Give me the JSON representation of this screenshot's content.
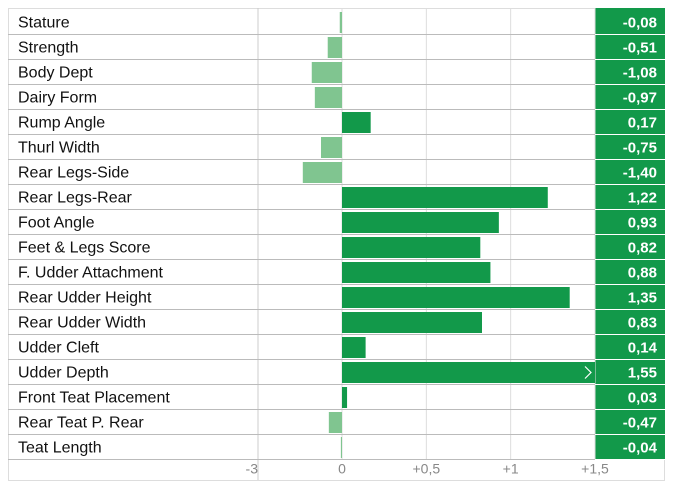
{
  "chart_data": {
    "type": "hbar",
    "categories": [
      "Stature",
      "Strength",
      "Body Dept",
      "Dairy Form",
      "Rump Angle",
      "Thurl Width",
      "Rear Legs-Side",
      "Rear Legs-Rear",
      "Foot Angle",
      "Feet & Legs Score",
      "F. Udder Attachment",
      "Rear Udder Height",
      "Rear Udder Width",
      "Udder Cleft",
      "Udder Depth",
      "Front Teat Placement",
      "Rear Teat P. Rear",
      "Teat Length"
    ],
    "values": [
      -0.08,
      -0.51,
      -1.08,
      -0.97,
      0.17,
      -0.75,
      -1.4,
      1.22,
      0.93,
      0.82,
      0.88,
      1.35,
      0.83,
      0.14,
      1.55,
      0.03,
      -0.47,
      -0.04
    ],
    "value_labels": [
      "-0,08",
      "-0,51",
      "-1,08",
      "-0,97",
      "0,17",
      "-0,75",
      "-1,40",
      "1,22",
      "0,93",
      "0,82",
      "0,88",
      "1,35",
      "0,83",
      "0,14",
      "1,55",
      "0,03",
      "-0,47",
      "-0,04"
    ],
    "color": "#12994a",
    "negative_color": "#80c590",
    "xlim": [
      -3,
      1.5
    ],
    "xticks": [
      -3,
      0,
      {
        "value": 0.5,
        "label": "+0,5"
      },
      {
        "value": 1,
        "label": "+1"
      },
      {
        "value": 1.5,
        "label": "+1,5"
      }
    ],
    "grid": true
  }
}
